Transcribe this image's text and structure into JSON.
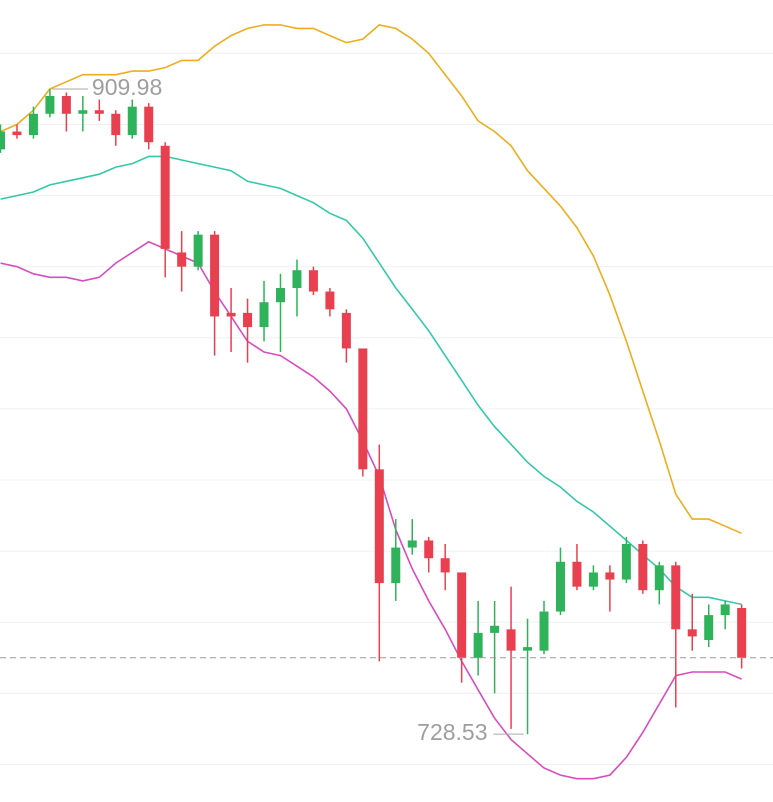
{
  "chart_data": {
    "type": "candlestick",
    "open": [
      893,
      898,
      897,
      903,
      908,
      903,
      904,
      903,
      897,
      905,
      894,
      864,
      860,
      869,
      847,
      847,
      843,
      850,
      854,
      859,
      853,
      847,
      837,
      803,
      771,
      781,
      783,
      778,
      774,
      750,
      757,
      758,
      752,
      752,
      763,
      777,
      770,
      774,
      772,
      782,
      769,
      776,
      758,
      755,
      762,
      764
    ],
    "high": [
      900,
      900,
      905,
      909.98,
      909,
      908,
      907,
      904,
      907,
      906,
      895,
      870,
      870,
      870,
      854,
      851,
      856,
      858,
      862,
      860,
      854,
      848,
      837,
      810,
      789,
      789,
      784,
      782,
      774,
      766,
      766,
      770,
      761,
      766,
      781,
      782,
      776,
      776,
      784,
      783,
      777,
      777,
      768,
      765,
      766,
      765
    ],
    "low": [
      892,
      896,
      896,
      902,
      898,
      898,
      901,
      894,
      896,
      893,
      857,
      853,
      859,
      835,
      836,
      833,
      839,
      836,
      846,
      852,
      846,
      833,
      801,
      749,
      766,
      779,
      774,
      769,
      743,
      745,
      740,
      730,
      728.53,
      751,
      762,
      769,
      769,
      763,
      771,
      768,
      765,
      736,
      752,
      753,
      758,
      747
    ],
    "close": [
      898,
      897,
      903,
      908,
      903,
      904,
      903,
      897,
      905,
      895,
      865,
      860,
      869,
      846,
      846,
      843,
      850,
      854,
      859,
      853,
      848,
      837,
      803,
      771,
      781,
      783,
      778,
      774,
      750,
      757,
      759,
      752,
      753,
      763,
      777,
      770,
      774,
      772,
      782,
      769,
      776,
      758,
      756,
      762,
      765,
      750
    ],
    "upper": [
      898,
      900,
      904,
      910,
      912,
      914,
      914,
      914,
      915,
      915,
      916,
      918,
      918,
      922,
      925,
      927,
      928,
      928,
      927,
      927,
      925,
      923,
      924,
      928,
      927,
      924,
      920,
      914,
      908,
      901,
      898,
      894,
      887,
      882,
      877,
      871,
      863,
      852,
      839,
      825,
      811,
      796,
      789,
      789,
      787,
      785
    ],
    "middle": [
      879,
      880,
      881,
      883,
      884,
      885,
      886,
      888,
      889,
      891,
      891,
      890,
      889,
      888,
      887,
      884,
      883,
      882,
      880,
      878,
      875,
      873,
      868,
      861,
      854,
      848,
      842,
      835,
      828,
      821,
      815,
      810,
      805,
      801,
      798,
      794,
      791,
      787,
      783,
      779,
      775,
      770,
      767,
      767,
      766,
      765
    ],
    "lower": [
      861,
      860,
      858,
      857,
      857,
      856,
      857,
      861,
      864,
      867,
      865,
      863,
      861,
      853,
      846,
      839,
      836,
      835,
      832,
      829,
      825,
      820,
      811,
      801,
      786,
      775,
      766,
      758,
      749,
      741,
      733,
      727,
      723,
      719,
      717,
      716,
      716,
      717,
      722,
      729,
      737,
      745,
      746,
      746,
      746,
      744
    ],
    "up_color": "#2eb35a",
    "down_color": "#e8404f",
    "band_colors": {
      "upper": "#ecae1e",
      "middle": "#33c9a8",
      "lower": "#d84cbf"
    },
    "ylim": [
      710,
      935
    ],
    "yticks": [
      720,
      740,
      760,
      780,
      800,
      820,
      840,
      860,
      880,
      900,
      920
    ],
    "grid": true
  }
}
